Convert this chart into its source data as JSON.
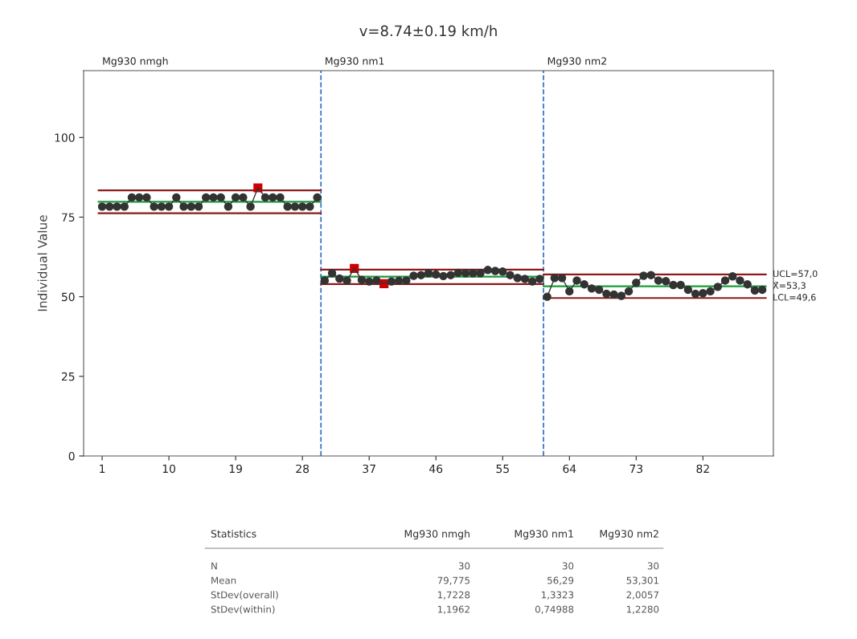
{
  "chart_data": {
    "type": "line",
    "title": "v=8.74±0.19 km/h",
    "ylabel": "Individual Value",
    "xlim": [
      -1.5,
      91.5
    ],
    "ylim": [
      0,
      121
    ],
    "xticks": [
      1,
      10,
      19,
      28,
      37,
      46,
      55,
      64,
      73,
      82
    ],
    "yticks": [
      0,
      25,
      50,
      75,
      100
    ],
    "grid": false,
    "marker": "circle",
    "series": [
      {
        "color": "#333333",
        "colors": [
          "#333333",
          "#333333",
          "#333333",
          "#333333",
          "#333333",
          "#333333",
          "#333333",
          "#333333",
          "#333333",
          "#333333",
          "#333333",
          "#333333",
          "#333333",
          "#333333",
          "#333333",
          "#333333",
          "#333333",
          "#333333",
          "#333333",
          "#333333",
          "#333333",
          "#cc0000",
          "#333333",
          "#333333",
          "#333333",
          "#333333",
          "#333333",
          "#333333",
          "#333333",
          "#333333"
        ],
        "x": [
          1,
          2,
          3,
          4,
          5,
          6,
          7,
          8,
          9,
          10,
          11,
          12,
          13,
          14,
          15,
          16,
          17,
          18,
          19,
          20,
          21,
          22,
          23,
          24,
          25,
          26,
          27,
          28,
          29,
          30
        ],
        "values": [
          78.3,
          78.3,
          78.3,
          78.3,
          81.2,
          81.2,
          81.2,
          78.3,
          78.3,
          78.3,
          81.2,
          78.3,
          78.3,
          78.3,
          81.2,
          81.2,
          81.2,
          78.3,
          81.2,
          81.2,
          78.3,
          84.2,
          81.2,
          81.2,
          81.2,
          78.3,
          78.3,
          78.3,
          78.3,
          81.2
        ]
      },
      {
        "color": "#333333",
        "colors": [
          "#333333",
          "#333333",
          "#333333",
          "#333333",
          "#cc0000",
          "#333333",
          "#333333",
          "#333333",
          "#cc0000",
          "#333333",
          "#333333",
          "#333333",
          "#333333",
          "#333333",
          "#333333",
          "#333333",
          "#333333",
          "#333333",
          "#333333",
          "#333333",
          "#333333",
          "#333333",
          "#333333",
          "#333333",
          "#333333",
          "#333333",
          "#333333",
          "#333333",
          "#333333",
          "#333333"
        ],
        "x": [
          31,
          32,
          33,
          34,
          35,
          36,
          37,
          38,
          39,
          40,
          41,
          42,
          43,
          44,
          45,
          46,
          47,
          48,
          49,
          50,
          51,
          52,
          53,
          54,
          55,
          56,
          57,
          58,
          59,
          60
        ],
        "values": [
          55.1,
          57.4,
          55.7,
          55.1,
          58.9,
          55.3,
          54.8,
          55.1,
          54.1,
          54.8,
          55.0,
          55.1,
          56.6,
          56.8,
          57.4,
          57.0,
          56.5,
          56.8,
          57.5,
          57.4,
          57.4,
          57.4,
          58.4,
          58.1,
          57.9,
          56.8,
          55.9,
          55.6,
          54.8,
          55.6
        ]
      },
      {
        "color": "#333333",
        "x": [
          61,
          62,
          63,
          64,
          65,
          66,
          67,
          68,
          69,
          70,
          71,
          72,
          73,
          74,
          75,
          76,
          77,
          78,
          79,
          80,
          81,
          82,
          83,
          84,
          85,
          86,
          87,
          88,
          89,
          90
        ],
        "values": [
          50.0,
          55.9,
          55.9,
          51.7,
          55.1,
          53.9,
          52.6,
          52.2,
          50.9,
          50.7,
          50.3,
          51.7,
          54.4,
          56.6,
          56.8,
          55.1,
          54.9,
          53.7,
          53.7,
          52.2,
          50.9,
          51.1,
          51.7,
          53.1,
          55.1,
          56.4,
          55.1,
          53.9,
          52.0,
          52.2
        ]
      },
      {
        "marker": "none",
        "color": "#8b1a1a",
        "x": [
          0.5,
          30.5
        ],
        "values": [
          83.4,
          83.4
        ]
      },
      {
        "marker": "none",
        "color": "#1a9a3a",
        "x": [
          0.5,
          30.5
        ],
        "values": [
          79.8,
          79.8
        ]
      },
      {
        "marker": "none",
        "color": "#8b1a1a",
        "x": [
          0.5,
          30.5
        ],
        "values": [
          76.2,
          76.2
        ]
      },
      {
        "marker": "none",
        "color": "#8b1a1a",
        "x": [
          30.5,
          60.5
        ],
        "values": [
          58.5,
          58.5
        ]
      },
      {
        "marker": "none",
        "color": "#1a9a3a",
        "x": [
          30.5,
          60.5
        ],
        "values": [
          56.3,
          56.3
        ]
      },
      {
        "marker": "none",
        "color": "#8b1a1a",
        "x": [
          30.5,
          60.5
        ],
        "values": [
          54.0,
          54.0
        ]
      },
      {
        "name": "UCL=57,0",
        "marker": "none",
        "color": "#8b1a1a",
        "x": [
          60.5,
          90.5
        ],
        "values": [
          57.0,
          57.0
        ]
      },
      {
        "name": "X̄=53,3",
        "marker": "none",
        "color": "#1a9a3a",
        "x": [
          60.5,
          90.5
        ],
        "values": [
          53.3,
          53.3
        ]
      },
      {
        "name": "LCL=49,6",
        "marker": "none",
        "color": "#8b1a1a",
        "x": [
          60.5,
          90.5
        ],
        "values": [
          49.6,
          49.6
        ]
      }
    ],
    "ref_lines": [
      {
        "axis": "x",
        "value": 30.5,
        "label": null,
        "color": "#2b6fc4",
        "line_style": "dashed"
      },
      {
        "axis": "x",
        "value": 60.5,
        "label": null,
        "color": "#2b6fc4",
        "line_style": "dashed"
      }
    ],
    "annotations": [
      "Mg930 nmgh",
      "Mg930 nm1",
      "Mg930 nm2",
      "Statistics",
      "Mg930 nmgh",
      "Mg930 nm1",
      "Mg930 nm2",
      "N",
      "30",
      "30",
      "30",
      "Mean",
      "79,775",
      "56,29",
      "53,301",
      "StDev(overall)",
      "1,7228",
      "1,3323",
      "2,0057",
      "StDev(within)",
      "1,1962",
      "0,74988",
      "1,2280"
    ]
  }
}
